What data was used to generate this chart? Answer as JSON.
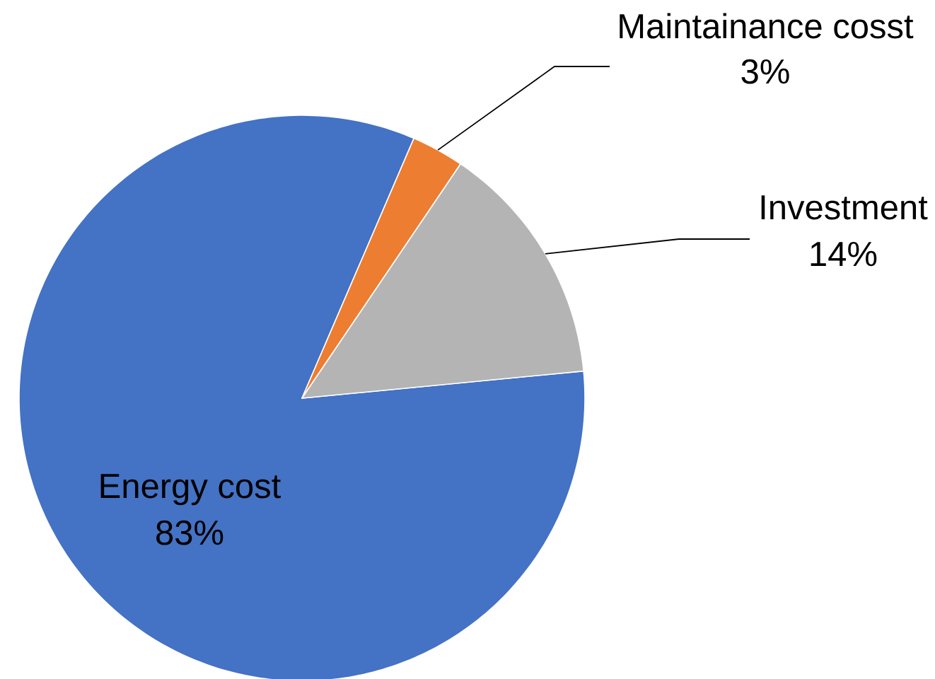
{
  "chart_data": {
    "type": "pie",
    "categories": [
      "Energy cost",
      "Maintainance cosst",
      "Investment"
    ],
    "values": [
      83,
      3,
      14
    ],
    "colors": [
      "#4472c4",
      "#ed7d31",
      "#b4b4b4"
    ],
    "value_labels": [
      "83%",
      "3%",
      "14%"
    ]
  }
}
